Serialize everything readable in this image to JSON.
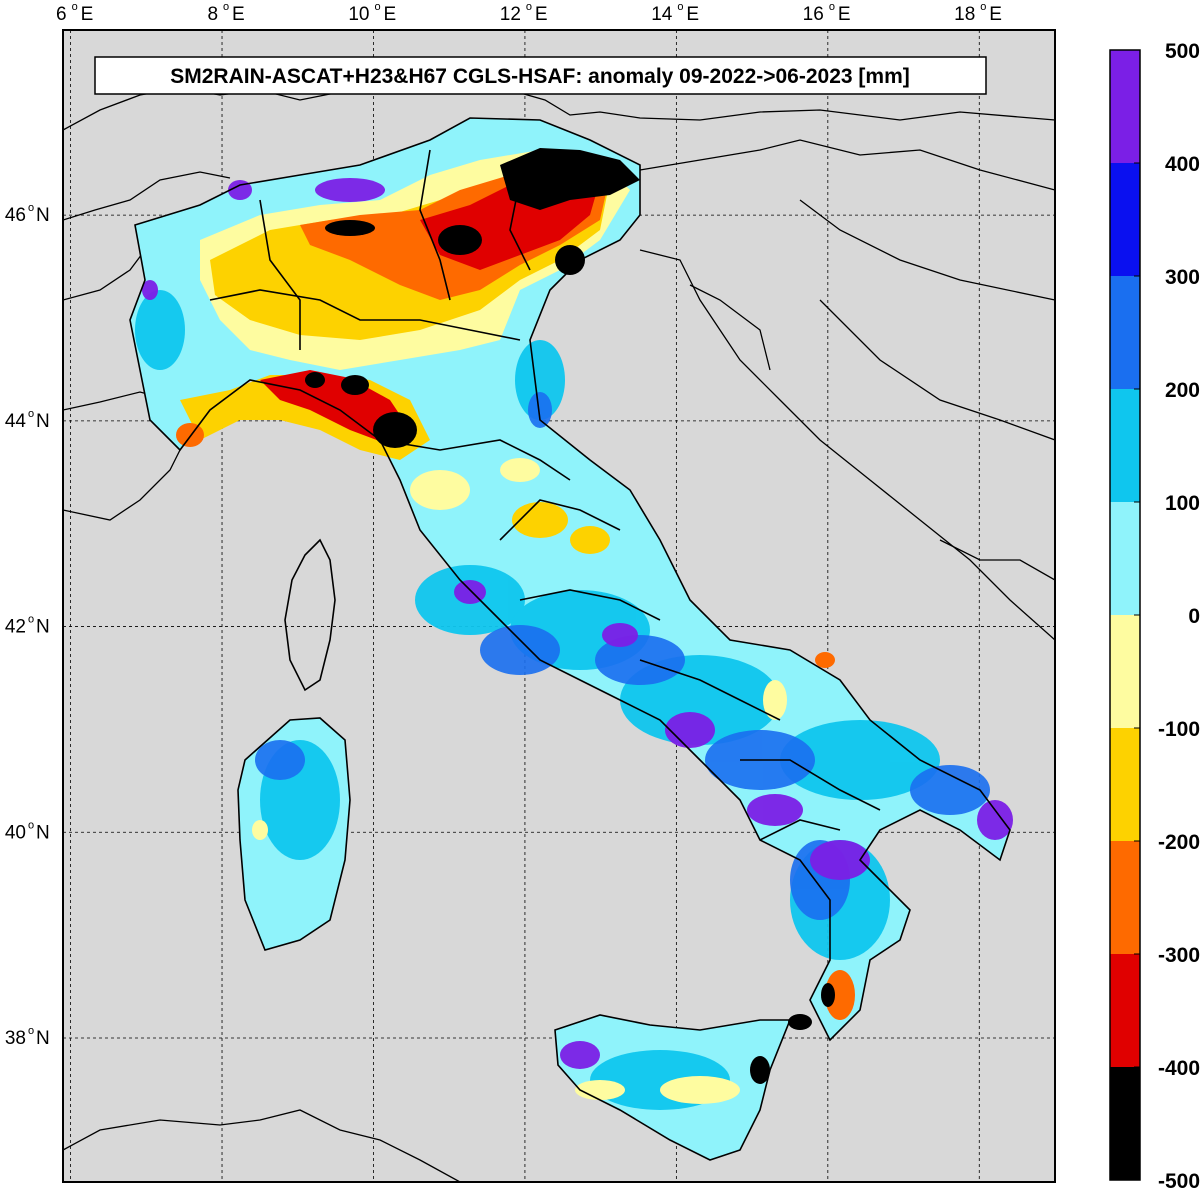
{
  "title": "SM2RAIN-ASCAT+H23&H67 CGLS-HSAF: anomaly 09-2022->06-2023 [mm]",
  "lon_ticks": [
    {
      "value": 6,
      "label": "6",
      "suffix": "E"
    },
    {
      "value": 8,
      "label": "8",
      "suffix": "E"
    },
    {
      "value": 10,
      "label": "10",
      "suffix": "E"
    },
    {
      "value": 12,
      "label": "12",
      "suffix": "E"
    },
    {
      "value": 14,
      "label": "14",
      "suffix": "E"
    },
    {
      "value": 16,
      "label": "16",
      "suffix": "E"
    },
    {
      "value": 18,
      "label": "18",
      "suffix": "E"
    }
  ],
  "lat_ticks": [
    {
      "value": 46,
      "label": "46",
      "suffix": "N"
    },
    {
      "value": 44,
      "label": "44",
      "suffix": "N"
    },
    {
      "value": 42,
      "label": "42",
      "suffix": "N"
    },
    {
      "value": 40,
      "label": "40",
      "suffix": "N"
    },
    {
      "value": 38,
      "label": "38",
      "suffix": "N"
    }
  ],
  "colorbar": {
    "labels": [
      "500",
      "400",
      "300",
      "200",
      "100",
      "0",
      "-100",
      "-200",
      "-300",
      "-400",
      "-500"
    ],
    "colors": [
      "#7b1fe6",
      "#0a10f0",
      "#1a6ff0",
      "#0fc6ee",
      "#8ff3fb",
      "#fefca0",
      "#fdd200",
      "#fe6a00",
      "#e00000",
      "#000000"
    ]
  },
  "map": {
    "background": "#d8d8d8",
    "lon_range": [
      5.9,
      19.0
    ],
    "lat_range": [
      36.6,
      47.8
    ]
  }
}
